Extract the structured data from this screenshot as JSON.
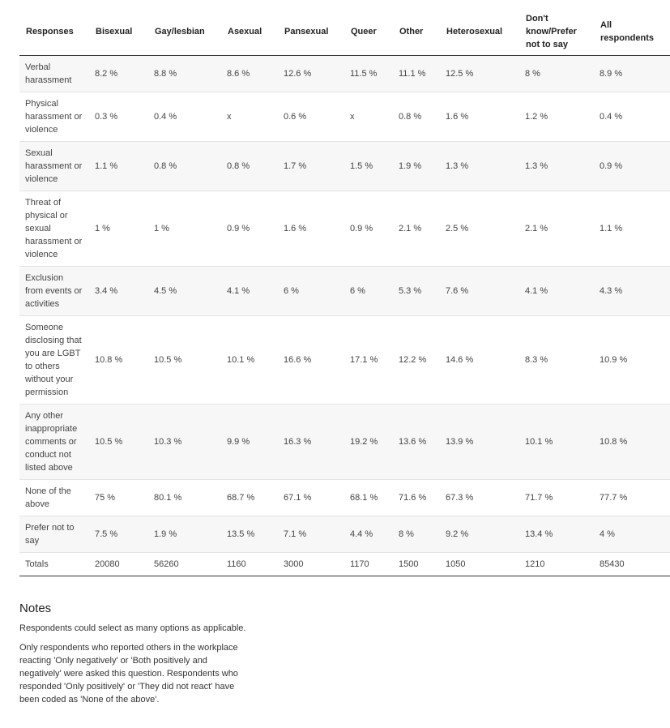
{
  "table": {
    "header": [
      "Responses",
      "Bisexual",
      "Gay/lesbian",
      "Asexual",
      "Pansexual",
      "Queer",
      "Other",
      "Heterosexual",
      "Don't know/Prefer not to say",
      "All respondents"
    ],
    "rows": [
      [
        "Verbal harassment",
        "8.2 %",
        "8.8 %",
        "8.6 %",
        "12.6 %",
        "11.5 %",
        "11.1 %",
        "12.5 %",
        "8 %",
        "8.9 %"
      ],
      [
        "Physical harassment or violence",
        "0.3 %",
        "0.4 %",
        "x",
        "0.6 %",
        "x",
        "0.8 %",
        "1.6 %",
        "1.2 %",
        "0.4 %"
      ],
      [
        "Sexual harassment or violence",
        "1.1 %",
        "0.8 %",
        "0.8 %",
        "1.7 %",
        "1.5 %",
        "1.9 %",
        "1.3 %",
        "1.3 %",
        "0.9 %"
      ],
      [
        "Threat of physical or sexual harassment or violence",
        "1 %",
        "1 %",
        "0.9 %",
        "1.6 %",
        "0.9 %",
        "2.1 %",
        "2.5 %",
        "2.1 %",
        "1.1 %"
      ],
      [
        "Exclusion from events or activities",
        "3.4 %",
        "4.5 %",
        "4.1 %",
        "6 %",
        "6 %",
        "5.3 %",
        "7.6 %",
        "4.1 %",
        "4.3 %"
      ],
      [
        "Someone disclosing that you are LGBT to others without your permission",
        "10.8 %",
        "10.5 %",
        "10.1 %",
        "16.6 %",
        "17.1 %",
        "12.2 %",
        "14.6 %",
        "8.3 %",
        "10.9 %"
      ],
      [
        "Any other inappropriate comments or conduct not listed above",
        "10.5 %",
        "10.3 %",
        "9.9 %",
        "16.3 %",
        "19.2 %",
        "13.6 %",
        "13.9 %",
        "10.1 %",
        "10.8 %"
      ],
      [
        "None of the above",
        "75 %",
        "80.1 %",
        "68.7 %",
        "67.1 %",
        "68.1 %",
        "71.6 %",
        "67.3 %",
        "71.7 %",
        "77.7 %"
      ],
      [
        "Prefer not to say",
        "7.5 %",
        "1.9 %",
        "13.5 %",
        "7.1 %",
        "4.4 %",
        "8 %",
        "9.2 %",
        "13.4 %",
        "4 %"
      ],
      [
        "Totals",
        20080,
        56260,
        1160,
        3000,
        1170,
        1500,
        1050,
        1210,
        85430
      ]
    ]
  },
  "notes": {
    "title": "Notes",
    "paragraphs": [
      "Respondents could select as many options as applicable.",
      "Only respondents who reported others in the workplace reacting 'Only negatively' or 'Both positively and negatively' were asked this question. Respondents who responded 'Only positively' or 'They did not react' have been coded as 'None of the above'."
    ]
  }
}
